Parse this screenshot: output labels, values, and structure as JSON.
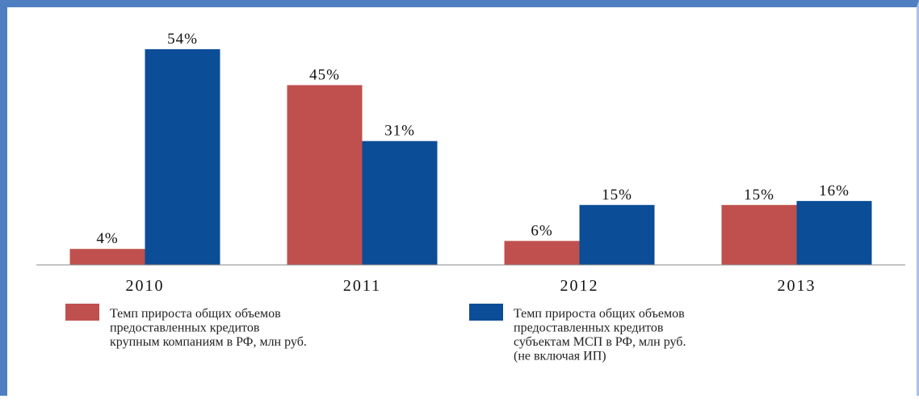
{
  "chart_data": {
    "type": "bar",
    "categories": [
      "2010",
      "2011",
      "2012",
      "2013"
    ],
    "series": [
      {
        "name": "Темп прироста общих объемов предоставленных кредитов крупным компаниям в РФ, млн руб.",
        "legend_lines": [
          "Темп прироста общих объемов",
          "предоставленных кредитов",
          "крупным компаниям в РФ, млн руб."
        ],
        "values": [
          4,
          45,
          6,
          15
        ],
        "labels": [
          "4%",
          "45%",
          "6%",
          "15%"
        ],
        "color": "#c0504d"
      },
      {
        "name": "Темп прироста общих объемов предоставленных кредитов субъектам МСП в РФ, млн руб. (не включая ИП)",
        "legend_lines": [
          "Темп прироста общих объемов",
          "предоставленных кредитов",
          "субъектам МСП в РФ, млн руб.",
          "(не включая ИП)"
        ],
        "values": [
          54,
          31,
          15,
          16
        ],
        "labels": [
          "54%",
          "31%",
          "15%",
          "16%"
        ],
        "color": "#0b4d96"
      }
    ],
    "title": "",
    "xlabel": "",
    "ylabel": "",
    "ylim": [
      0,
      56
    ],
    "grid": false,
    "legend_position": "bottom"
  }
}
